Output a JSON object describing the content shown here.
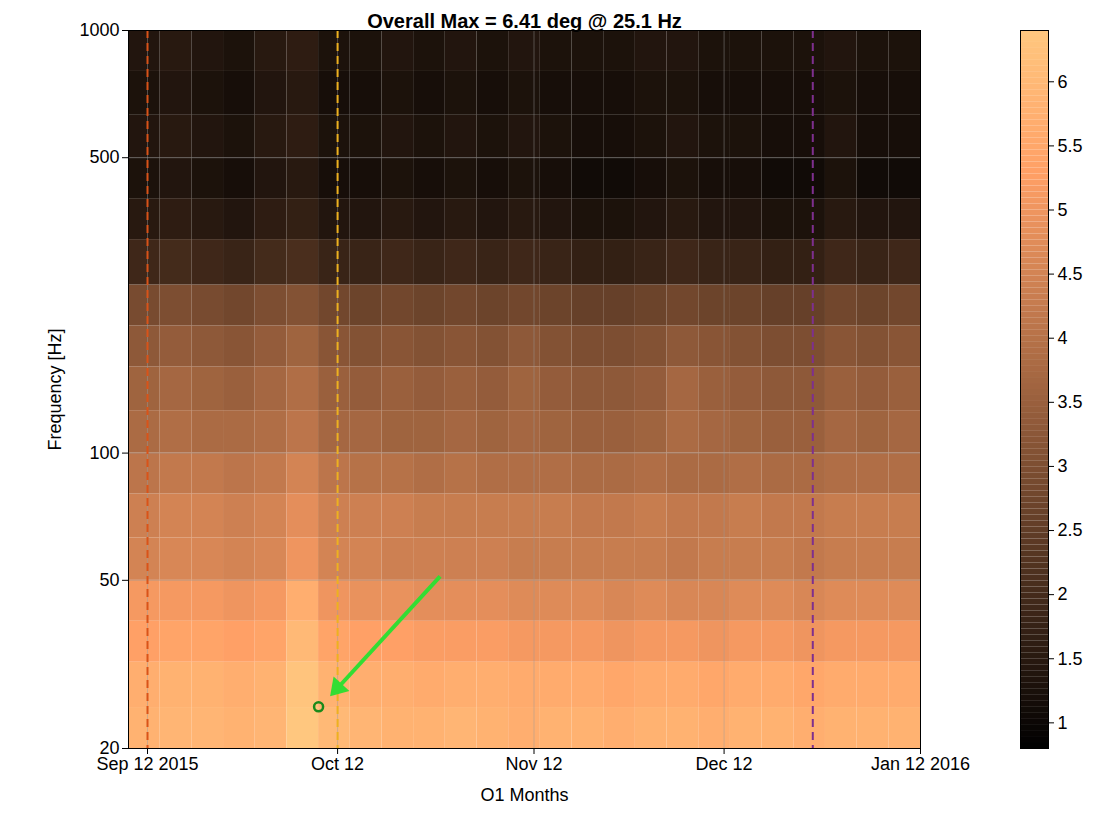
{
  "chart_data": {
    "type": "heatmap",
    "title": "Overall Max = 6.41 deg @ 25.1 Hz",
    "x_label": "O1 Months",
    "y_label": "Frequency [Hz]",
    "log": "y",
    "grid": true,
    "xlim": [
      "2015-09-09",
      "2016-01-12"
    ],
    "ylim": [
      20,
      1000
    ],
    "xticks": [
      {
        "value": "2015-09-12",
        "label": "Sep 12 2015"
      },
      {
        "value": "2015-10-12",
        "label": "Oct 12"
      },
      {
        "value": "2015-11-12",
        "label": "Nov 12"
      },
      {
        "value": "2015-12-12",
        "label": "Dec 12"
      },
      {
        "value": "2016-01-12",
        "label": "Jan 12 2016"
      }
    ],
    "yticks": [
      20,
      50,
      100,
      500,
      1000
    ],
    "x_bins": [
      "2015-09-09",
      "2015-09-14",
      "2015-09-19",
      "2015-09-24",
      "2015-09-29",
      "2015-10-04",
      "2015-10-09",
      "2015-10-14",
      "2015-10-19",
      "2015-10-24",
      "2015-10-29",
      "2015-11-03",
      "2015-11-08",
      "2015-11-13",
      "2015-11-18",
      "2015-11-23",
      "2015-11-28",
      "2015-12-03",
      "2015-12-08",
      "2015-12-13",
      "2015-12-18",
      "2015-12-23",
      "2015-12-28",
      "2016-01-02",
      "2016-01-07",
      "2016-01-12"
    ],
    "y_bins": [
      20,
      25,
      32,
      40,
      50,
      63,
      80,
      100,
      126,
      160,
      200,
      250,
      320,
      400,
      500,
      630,
      800,
      1000
    ],
    "cells": [
      [
        5.8,
        5.9,
        5.9,
        5.8,
        5.9,
        6.41,
        6.0,
        5.9,
        5.8,
        5.8,
        5.9,
        5.8,
        5.7,
        5.8,
        5.8,
        5.7,
        5.8,
        5.8,
        5.7,
        5.8,
        5.8,
        5.7,
        5.8,
        5.8,
        5.8
      ],
      [
        5.7,
        5.8,
        5.8,
        5.7,
        5.8,
        6.3,
        5.8,
        5.7,
        5.7,
        5.6,
        5.7,
        5.7,
        5.6,
        5.6,
        5.6,
        5.5,
        5.6,
        5.6,
        5.5,
        5.6,
        5.6,
        5.5,
        5.6,
        5.6,
        5.6
      ],
      [
        5.3,
        5.4,
        5.4,
        5.3,
        5.4,
        6.0,
        5.4,
        5.3,
        5.3,
        5.2,
        5.2,
        5.2,
        5.1,
        5.1,
        5.1,
        5.0,
        5.1,
        5.1,
        5.0,
        5.1,
        5.1,
        5.0,
        5.1,
        5.1,
        5.1
      ],
      [
        5.1,
        5.1,
        5.1,
        5.0,
        5.1,
        5.7,
        5.0,
        4.9,
        4.9,
        4.8,
        4.8,
        4.8,
        4.7,
        4.7,
        4.7,
        4.6,
        4.7,
        4.6,
        4.6,
        4.7,
        4.7,
        4.6,
        4.7,
        4.7,
        4.7
      ],
      [
        4.5,
        4.6,
        4.6,
        4.5,
        4.6,
        5.0,
        4.5,
        4.5,
        4.4,
        4.4,
        4.4,
        4.4,
        4.3,
        4.3,
        4.3,
        4.3,
        4.3,
        4.2,
        4.3,
        4.3,
        4.3,
        4.2,
        4.3,
        4.3,
        4.3
      ],
      [
        4.4,
        4.5,
        4.5,
        4.4,
        4.5,
        4.8,
        4.4,
        4.4,
        4.4,
        4.3,
        4.3,
        4.3,
        4.3,
        4.3,
        4.2,
        4.2,
        4.3,
        4.2,
        4.2,
        4.3,
        4.2,
        4.2,
        4.3,
        4.3,
        4.3
      ],
      [
        4.1,
        4.2,
        4.2,
        4.1,
        4.2,
        4.5,
        4.1,
        4.0,
        4.0,
        3.9,
        4.0,
        3.9,
        3.9,
        3.9,
        3.8,
        3.8,
        3.9,
        3.8,
        3.8,
        3.9,
        3.8,
        3.8,
        3.9,
        3.9,
        3.9
      ],
      [
        3.8,
        3.9,
        3.8,
        3.8,
        3.9,
        4.1,
        3.7,
        3.7,
        3.6,
        3.6,
        3.7,
        3.6,
        3.7,
        3.6,
        3.5,
        3.5,
        3.6,
        3.8,
        3.7,
        3.6,
        3.5,
        3.5,
        3.7,
        3.6,
        3.7
      ],
      [
        3.6,
        3.7,
        3.6,
        3.5,
        3.7,
        3.9,
        3.5,
        3.4,
        3.5,
        3.4,
        3.5,
        3.4,
        3.6,
        3.4,
        3.3,
        3.3,
        3.4,
        3.7,
        3.5,
        3.4,
        3.3,
        3.3,
        3.5,
        3.4,
        3.5
      ],
      [
        3.3,
        3.4,
        3.3,
        3.2,
        3.4,
        3.6,
        3.2,
        3.1,
        3.2,
        3.1,
        3.2,
        3.1,
        3.3,
        3.1,
        3.0,
        3.0,
        3.1,
        3.3,
        3.2,
        3.1,
        3.0,
        3.0,
        3.2,
        3.1,
        3.2
      ],
      [
        2.9,
        3.0,
        2.9,
        2.8,
        3.0,
        3.1,
        2.8,
        2.7,
        2.8,
        2.7,
        2.8,
        2.7,
        2.8,
        2.7,
        2.6,
        2.6,
        2.7,
        2.8,
        2.7,
        2.7,
        2.6,
        2.6,
        2.8,
        2.7,
        2.8
      ],
      [
        1.9,
        2.0,
        1.9,
        1.8,
        2.0,
        2.1,
        1.8,
        1.8,
        1.9,
        1.8,
        1.9,
        1.8,
        1.9,
        1.8,
        1.7,
        1.7,
        1.8,
        1.9,
        1.8,
        1.8,
        1.7,
        1.7,
        1.9,
        1.8,
        1.9
      ],
      [
        1.5,
        1.6,
        1.5,
        1.4,
        1.6,
        1.7,
        1.4,
        1.4,
        1.5,
        1.4,
        1.5,
        1.4,
        1.5,
        1.4,
        1.3,
        1.3,
        1.4,
        1.5,
        1.4,
        1.4,
        1.3,
        1.3,
        1.5,
        1.4,
        1.4
      ],
      [
        1.3,
        1.4,
        1.3,
        1.2,
        1.4,
        1.5,
        1.2,
        1.2,
        1.3,
        1.2,
        1.3,
        1.2,
        1.3,
        1.2,
        1.1,
        1.1,
        1.2,
        1.3,
        1.2,
        1.2,
        1.1,
        1.1,
        1.3,
        1.1,
        1.1
      ],
      [
        1.4,
        1.5,
        1.4,
        1.3,
        1.5,
        1.6,
        1.3,
        1.3,
        1.4,
        1.3,
        1.4,
        1.3,
        1.4,
        1.3,
        1.2,
        1.2,
        1.3,
        1.4,
        1.3,
        1.3,
        1.2,
        1.2,
        1.4,
        1.2,
        1.2
      ],
      [
        1.3,
        1.4,
        1.3,
        1.2,
        1.4,
        1.5,
        1.2,
        1.2,
        1.3,
        1.2,
        1.3,
        1.2,
        1.3,
        1.2,
        1.2,
        1.2,
        1.3,
        1.3,
        1.2,
        1.2,
        1.2,
        1.2,
        1.3,
        1.2,
        1.2
      ],
      [
        1.4,
        1.5,
        1.4,
        1.3,
        1.5,
        1.6,
        1.3,
        1.3,
        1.4,
        1.3,
        1.4,
        1.3,
        1.4,
        1.3,
        1.3,
        1.3,
        1.4,
        1.4,
        1.3,
        1.3,
        1.3,
        1.3,
        1.4,
        1.3,
        1.3
      ]
    ],
    "color_range": [
      0.8,
      6.4
    ],
    "color_ticks": [
      1,
      1.5,
      2,
      2.5,
      3,
      3.5,
      4,
      4.5,
      5,
      5.5,
      6
    ],
    "vlines": [
      {
        "x": "2015-09-12",
        "color": "#d95319",
        "line_style": "dashed"
      },
      {
        "x": "2015-10-12",
        "color": "#edb120",
        "line_style": "dashed"
      },
      {
        "x": "2015-12-26",
        "color": "#7e2f8e",
        "line_style": "dashed"
      }
    ],
    "max_point": {
      "x": "2015-10-09",
      "y": 25.1,
      "color": "#1a8a1a",
      "marker": "circle"
    }
  }
}
